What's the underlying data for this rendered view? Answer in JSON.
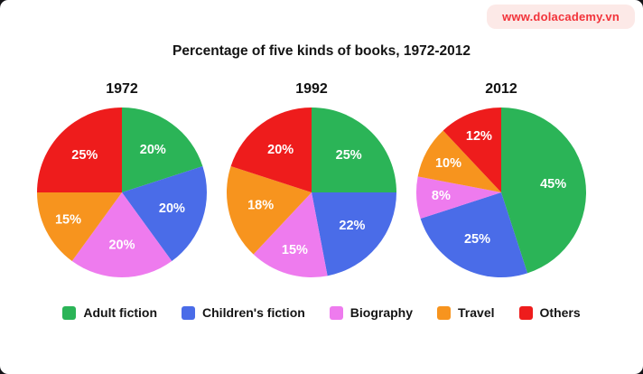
{
  "badge": {
    "text": "www.dolacademy.vn",
    "bg": "#fce9e7",
    "color": "#f2333a"
  },
  "title": "Percentage of five kinds of books, 1972-2012",
  "chart_data": {
    "type": "pie",
    "title": "Percentage of five kinds of books, 1972-2012",
    "categories": [
      "Adult fiction",
      "Children's fiction",
      "Biography",
      "Travel",
      "Others"
    ],
    "colors": [
      "#2bb457",
      "#4a6ce8",
      "#ee7bee",
      "#f7941e",
      "#ee1c1c"
    ],
    "legend_position": "bottom",
    "start_angle": "top, clockwise",
    "pies": [
      {
        "year": "1972",
        "values": [
          20,
          20,
          20,
          15,
          25
        ],
        "labels": [
          "20%",
          "20%",
          "20%",
          "15%",
          "25%"
        ]
      },
      {
        "year": "1992",
        "values": [
          25,
          22,
          15,
          18,
          20
        ],
        "labels": [
          "25%",
          "22%",
          "15%",
          "18%",
          "20%"
        ]
      },
      {
        "year": "2012",
        "values": [
          45,
          25,
          8,
          10,
          12
        ],
        "labels": [
          "45%",
          "25%",
          "8%",
          "10%",
          "12%"
        ]
      }
    ]
  }
}
